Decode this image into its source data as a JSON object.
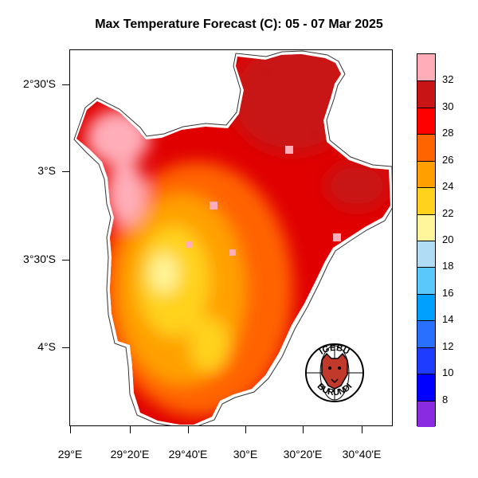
{
  "title": "Max Temperature Forecast (C): 05 - 07 Mar 2025",
  "lat_labels": [
    "2°30'S",
    "3°S",
    "3°30'S",
    "4°S"
  ],
  "lon_labels": [
    "29°E",
    "29°20'E",
    "29°40'E",
    "30°E",
    "30°20'E",
    "30°40'E"
  ],
  "colorbar": {
    "labels": [
      "32",
      "30",
      "28",
      "26",
      "24",
      "22",
      "20",
      "18",
      "16",
      "14",
      "12",
      "10",
      "8"
    ],
    "colors": [
      "#8a2be2",
      "#0000ff",
      "#1e3cff",
      "#2a70ff",
      "#00a0ff",
      "#5ac8fa",
      "#b0ddf5",
      "#fff59a",
      "#ffd21e",
      "#ffa000",
      "#ff6400",
      "#ff0000",
      "#c81414",
      "#ffaeb9"
    ]
  },
  "logo": {
    "top_text": "IGEBU",
    "bottom_text": "BURUNDI"
  }
}
